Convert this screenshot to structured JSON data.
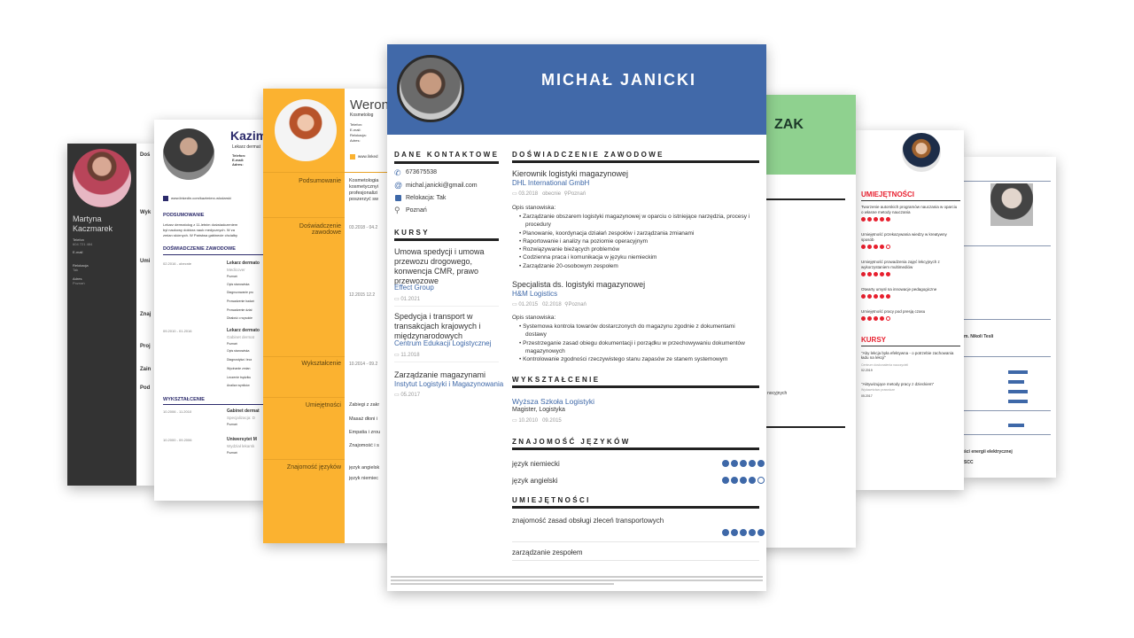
{
  "far_right_cv": {
    "name_fragment": "m. Nikoli Tesli",
    "course_fragment": "ści energii elektrycznej",
    "cert_fragment": "SCC",
    "accent": "#3e68a8",
    "skill_levels": [
      5,
      4,
      5,
      5,
      4
    ]
  },
  "dark_cv": {
    "name_first": "Martyna",
    "name_last": "Kaczmarek",
    "phone_label": "Telefon",
    "phone": "604 721 484",
    "email_label": "E-mail",
    "relocation_label": "Relokacja",
    "relocation": "Tak",
    "address_label": "Adres",
    "address": "Poznań",
    "sidebar_color": "#333333",
    "fragments": [
      "Doś",
      "Wyk",
      "Umi",
      "Znaj",
      "Proj",
      "Zain",
      "Pod"
    ]
  },
  "doctor_cv": {
    "name_fragment": "Kazim",
    "job_fragment": "Lekarz dermat",
    "phone_label": "Telefon:",
    "email_label": "E-mail:",
    "address_label": "Adres:",
    "linkedin": "www.linkedin.com/kazimierz-wlodarski",
    "summary_title": "PODSUMOWANIE",
    "summary_lines": [
      "Lekarz dermatolog z 11-letnim doświadczeniem",
      "był naukowy doktora nauk medycznych. W za",
      "zmian skórnych. W Państwa gabinecie chciałby"
    ],
    "experience_title": "DOŚWIADCZENIE ZAWODOWE",
    "jobs": [
      {
        "dates": "02.2016 - obecnie",
        "position": "Lekarz dermato",
        "company": "Medicover",
        "city": "Poznań",
        "tasks": [
          "Opis stanowiska",
          "Diagnozowanie pro",
          "Prowadzenie badań",
          "Prowadzenie dział",
          "Dbałość o wysokie"
        ]
      },
      {
        "dates": "09.2010 - 01.2016",
        "position": "Lekarz dermato",
        "company": "Gabinet dermat",
        "city": "Poznań",
        "tasks": [
          "Opis stanowiska",
          "Diagnostyka i lecz",
          "Wycinanie zmian",
          "Leczenie trądziku",
          "Analiza wyników"
        ]
      }
    ],
    "education_title": "WYKSZTAŁCENIE",
    "education": [
      {
        "dates": "10.2006 - 11.2010",
        "school": "Gabinet dermat",
        "detail": "Specjalizacja: D",
        "city": "Poznań"
      },
      {
        "dates": "10.2000 - 09.2006",
        "school": "Uniwersytet M",
        "detail": "Wydział lekarsk",
        "city": "Poznań"
      }
    ],
    "accent": "#2b2a6b"
  },
  "beautician_cv": {
    "name_fragment": "Weron",
    "job": "Kosmetolog",
    "contact_labels": [
      "Telefon:",
      "E-mail:",
      "Relokacja:",
      "Adres:"
    ],
    "linkedin_fragment": "www.linked",
    "sections": [
      "Podsumowanie",
      "Doświadczenie zawodowe",
      "Wykształcenie",
      "Umiejętności",
      "Znajomość języków"
    ],
    "summary_lines": [
      "Kosmetologia",
      "kosmetycznyi",
      "profesjonalizi",
      "poszerzyć sw"
    ],
    "experience_dates": [
      "03.2018 - 04.2",
      "12.2015  12.2"
    ],
    "education_dates": "10.2014 - 09.2",
    "skills": [
      "Zabiegi z zakr",
      "Masaż dłoni i",
      "Empatia i zrou",
      "Znajomość i s"
    ],
    "languages": [
      "język angielsk",
      "język niemiec"
    ],
    "accent": "#fbb230"
  },
  "green_cv": {
    "name_fragment": "ZAK",
    "text_fragment": "nocyjnych",
    "accent": "#8fd18f"
  },
  "teacher_cv": {
    "skills_title": "UMIEJĘTNOŚCI",
    "skills": [
      {
        "name": "Tworzenie autorskich programów nauczania w oparciu o własne metody nauczania",
        "level": 5
      },
      {
        "name": "Umiejętność przekazywania wiedzy w kreatywny sposób",
        "level": 4
      },
      {
        "name": "Umiejętność prowadzenia zajęć lekcyjnych z wykorzystaniem multimediów",
        "level": 5
      },
      {
        "name": "Otwarty umysł na innowacje pedagogiczne",
        "level": 5
      },
      {
        "name": "Umiejętność pracy pod presją czasu",
        "level": 4
      }
    ],
    "courses_title": "KURSY",
    "courses": [
      {
        "name": "\"Aby lekcja była efektywna - o potrzebie zachowania ładu na lekcji\"",
        "org": "Centrum doskonalenia nauczycieli",
        "date": "02.2019"
      },
      {
        "name": "\"Aktywizujące metody pracy z dzieckiem\"",
        "org": "Wydawnictwo prawnicze",
        "date": "05.2017"
      }
    ],
    "accent": "#e8202f"
  },
  "main_cv": {
    "name": "MICHAŁ JANICKI",
    "header_color": "#4169a9",
    "link_color": "#3e68a8",
    "contact": {
      "title": "DANE KONTAKTOWE",
      "phone": "673675538",
      "email": "michal.janicki@gmail.com",
      "relocation": "Relokacja: Tak",
      "city": "Poznań"
    },
    "courses": {
      "title": "KURSY",
      "items": [
        {
          "name_lines": [
            "Umowa spedycji i umowa",
            "przewozu drogowego,",
            "konwencja CMR, prawo",
            "przewozowe"
          ],
          "org": "Effect Group",
          "date": "01.2021"
        },
        {
          "name_lines": [
            "Spedycja i transport w",
            "transakcjach krajowych i",
            "międzynarodowych"
          ],
          "org": "Centrum Edukacji Logistycznej",
          "date": "11.2018"
        },
        {
          "name_lines": [
            "Zarządzanie magazynami"
          ],
          "org": "Instytut Logistyki i Magazynowania",
          "date": "05.2017"
        }
      ]
    },
    "experience": {
      "title": "DOŚWIADCZENIE ZAWODOWE",
      "jobs": [
        {
          "position": "Kierownik logistyki magazynowej",
          "company": "DHL International GmbH",
          "start": "03.2018",
          "end": "obecnie",
          "city": "Poznań",
          "desc_label": "Opis stanowiska:",
          "bullets": [
            "Zarządzanie obszarem logistyki magazynowej w oparciu o istniejące narzędzia, procesy i",
            "procedury",
            "Planowanie, koordynacja działań zespołów i zarządzania zmianami",
            "Raportowanie i analizy na poziomie operacyjnym",
            "Rozwiązywanie bieżących problemów",
            "Codzienna praca i komunikacja w języku niemieckim",
            "Zarządzanie 20-osobowym zespołem"
          ]
        },
        {
          "position": "Specjalista ds. logistyki magazynowej",
          "company": "H&M Logistics",
          "start": "01.2015",
          "end": "02.2018",
          "city": "Poznań",
          "desc_label": "Opis stanowiska:",
          "bullets": [
            "Systemowa kontrola towarów dostarczonych do magazynu zgodnie z dokumentami",
            "dostawy",
            "Przestrzeganie zasad obiegu dokumentacji i porządku w przechowywaniu dokumentów",
            "magazynowych",
            "Kontrolowanie zgodności rzeczywistego stanu zapasów ze stanem systemowym"
          ]
        }
      ]
    },
    "education": {
      "title": "WYKSZTAŁCENIE",
      "school": "Wyższa Szkoła Logistyki",
      "degree": "Magister,  Logistyka",
      "start": "10.2010",
      "end": "09.2015"
    },
    "languages": {
      "title": "ZNAJOMOŚĆ JĘZYKÓW",
      "items": [
        {
          "name": "język niemiecki",
          "level": 5
        },
        {
          "name": "język angielski",
          "level": 4
        }
      ]
    },
    "skills": {
      "title": "UMIEJĘTNOŚCI",
      "items": [
        {
          "name": "znajomość zasad obsługi zleceń transportowych",
          "level": 5
        },
        {
          "name": "zarządzanie zespołem"
        }
      ]
    }
  }
}
